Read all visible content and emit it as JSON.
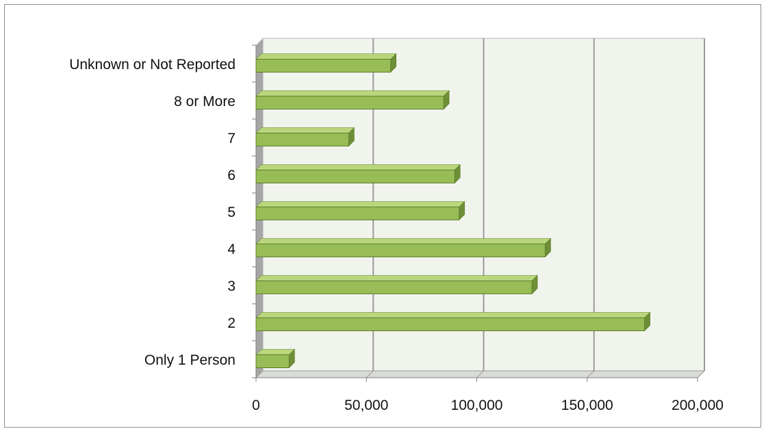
{
  "chart_data": {
    "type": "bar",
    "orientation": "horizontal",
    "title": "",
    "xlabel": "",
    "ylabel": "",
    "categories": [
      "Only 1 Person",
      "2",
      "3",
      "4",
      "5",
      "6",
      "7",
      "8 or More",
      "Unknown or Not Reported"
    ],
    "values": [
      15000,
      176000,
      125000,
      131000,
      92000,
      90000,
      42000,
      85000,
      61000
    ],
    "xlim": [
      0,
      200000
    ],
    "x_tick_labels": [
      "0",
      "50,000",
      "100,000",
      "150,000",
      "200,000"
    ],
    "x_ticks": [
      0,
      50000,
      100000,
      150000,
      200000
    ],
    "grid": "vertical-major",
    "legend": "none",
    "style": "3d"
  },
  "colors": {
    "bar_front": "#98bd57",
    "bar_top": "#b9d67c",
    "bar_side": "#6e8f37",
    "bar_outline": "#5f7e2c",
    "plot_back": "#f1f4ed",
    "plot_floor": "#d9dcd6",
    "left_wall": "#a6a6a6",
    "grid": "#9a9a9a"
  }
}
